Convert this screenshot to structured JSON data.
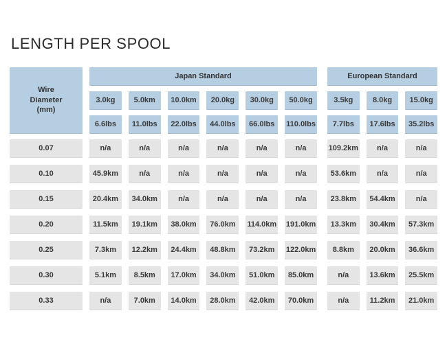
{
  "title": "LENGTH PER SPOOL",
  "colors": {
    "header_blue": "#b6cee2",
    "cell_gray": "#e5e5e6",
    "text_dark": "#3a3a3a",
    "background": "#ffffff"
  },
  "chart_data": {
    "type": "table",
    "title": "LENGTH PER SPOOL",
    "row_header": "Wire\nDiameter\n(mm)",
    "groups": [
      {
        "label": "Japan Standard",
        "kg": [
          "3.0kg",
          "5.0km",
          "10.0km",
          "20.0kg",
          "30.0kg",
          "50.0kg"
        ],
        "lbs": [
          "6.6lbs",
          "11.0lbs",
          "22.0lbs",
          "44.0lbs",
          "66.0lbs",
          "110.0lbs"
        ]
      },
      {
        "label": "European Standard",
        "kg": [
          "3.5kg",
          "8.0kg",
          "15.0kg"
        ],
        "lbs": [
          "7.7lbs",
          "17.6lbs",
          "35.2lbs"
        ]
      }
    ],
    "rows": [
      {
        "diameter": "0.07",
        "japan": [
          "n/a",
          "n/a",
          "n/a",
          "n/a",
          "n/a",
          "n/a"
        ],
        "european": [
          "109.2km",
          "n/a",
          "n/a"
        ]
      },
      {
        "diameter": "0.10",
        "japan": [
          "45.9km",
          "n/a",
          "n/a",
          "n/a",
          "n/a",
          "n/a"
        ],
        "european": [
          "53.6km",
          "n/a",
          "n/a"
        ]
      },
      {
        "diameter": "0.15",
        "japan": [
          "20.4km",
          "34.0km",
          "n/a",
          "n/a",
          "n/a",
          "n/a"
        ],
        "european": [
          "23.8km",
          "54.4km",
          "n/a"
        ]
      },
      {
        "diameter": "0.20",
        "japan": [
          "11.5km",
          "19.1km",
          "38.0km",
          "76.0km",
          "114.0km",
          "191.0km"
        ],
        "european": [
          "13.3km",
          "30.4km",
          "57.3km"
        ]
      },
      {
        "diameter": "0.25",
        "japan": [
          "7.3km",
          "12.2km",
          "24.4km",
          "48.8km",
          "73.2km",
          "122.0km"
        ],
        "european": [
          "8.8km",
          "20.0km",
          "36.6km"
        ]
      },
      {
        "diameter": "0.30",
        "japan": [
          "5.1km",
          "8.5km",
          "17.0km",
          "34.0km",
          "51.0km",
          "85.0km"
        ],
        "european": [
          "n/a",
          "13.6km",
          "25.5km"
        ]
      },
      {
        "diameter": "0.33",
        "japan": [
          "n/a",
          "7.0km",
          "14.0km",
          "28.0km",
          "42.0km",
          "70.0km"
        ],
        "european": [
          "n/a",
          "11.2km",
          "21.0km"
        ]
      }
    ]
  }
}
